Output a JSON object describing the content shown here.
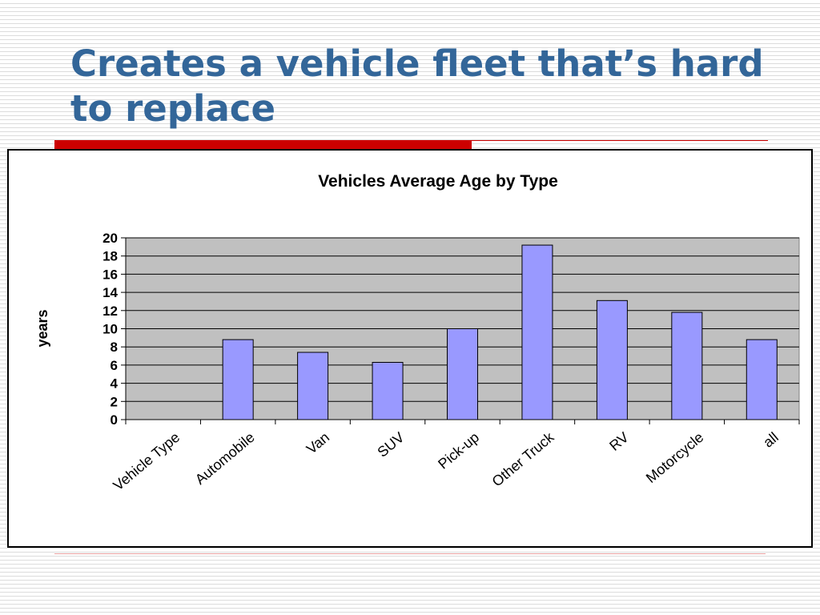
{
  "slide": {
    "title": "Creates a vehicle fleet that’s hard to replace"
  },
  "colors": {
    "title": "#336699",
    "accent_rule": "#cc0000",
    "bar_fill": "#9999ff",
    "plot_background": "#c0c0c0"
  },
  "chart_data": {
    "type": "bar",
    "title": "Vehicles Average Age by Type",
    "xlabel": "",
    "ylabel": "years",
    "categories": [
      "Vehicle Type",
      "Automobile",
      "Van",
      "SUV",
      "Pick-up",
      "Other Truck",
      "RV",
      "Motorcycle",
      "all"
    ],
    "values": [
      null,
      8.8,
      7.4,
      6.3,
      10.0,
      19.2,
      13.1,
      11.8,
      8.8
    ],
    "ylim": [
      0,
      20
    ],
    "yticks": [
      0,
      2,
      4,
      6,
      8,
      10,
      12,
      14,
      16,
      18,
      20
    ],
    "grid": true,
    "legend": "none"
  }
}
